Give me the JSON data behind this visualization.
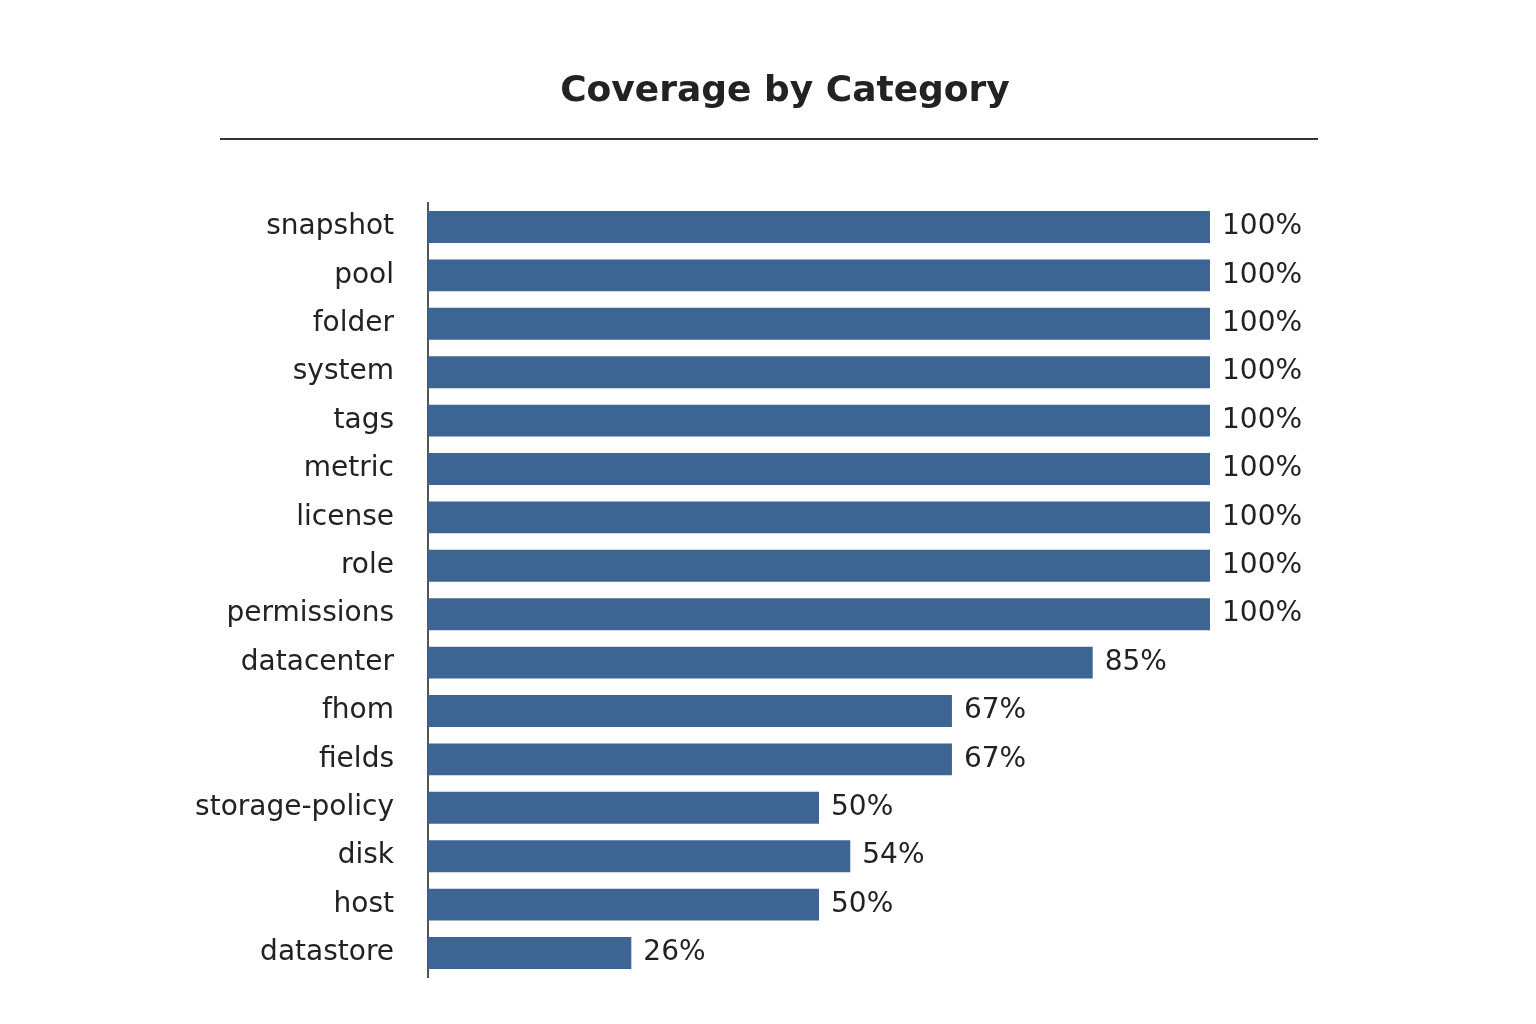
{
  "chart_data": {
    "type": "bar",
    "orientation": "horizontal",
    "title": "Coverage by Category",
    "categories": [
      "snapshot",
      "pool",
      "folder",
      "system",
      "tags",
      "metric",
      "license",
      "role",
      "permissions",
      "datacenter",
      "fhom",
      "fields",
      "storage-policy",
      "disk",
      "host",
      "datastore"
    ],
    "values": [
      100,
      100,
      100,
      100,
      100,
      100,
      100,
      100,
      100,
      85,
      67,
      67,
      50,
      54,
      50,
      26
    ],
    "value_labels": [
      "100%",
      "100%",
      "100%",
      "100%",
      "100%",
      "100%",
      "100%",
      "100%",
      "100%",
      "85%",
      "67%",
      "67%",
      "50%",
      "54%",
      "50%",
      "26%"
    ],
    "color": "#3d6594",
    "grid": false,
    "legend": false
  }
}
